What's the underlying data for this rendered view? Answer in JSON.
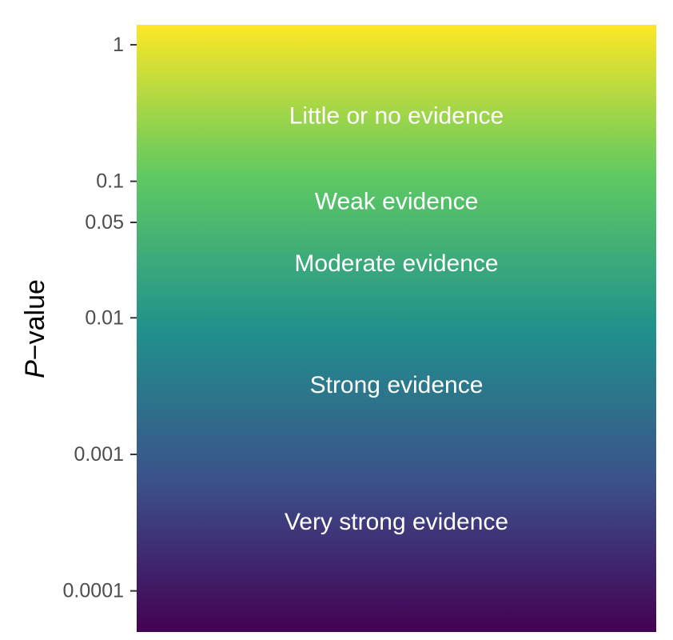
{
  "chart_data": {
    "type": "heatmap",
    "title": "",
    "xlabel": "",
    "ylabel": {
      "italic": "P",
      "rest": "−value"
    },
    "ylabel_text": "P−value",
    "y_scale": "log10",
    "ylim": [
      5e-05,
      1.4
    ],
    "y_ticks": [
      {
        "value": 1,
        "label": "1"
      },
      {
        "value": 0.1,
        "label": "0.1"
      },
      {
        "value": 0.05,
        "label": "0.05"
      },
      {
        "value": 0.01,
        "label": "0.01"
      },
      {
        "value": 0.001,
        "label": "0.001"
      },
      {
        "value": 0.0001,
        "label": "0.0001"
      }
    ],
    "bands": [
      {
        "label": "Little or no evidence",
        "at": 0.3
      },
      {
        "label": "Weak evidence",
        "at": 0.071
      },
      {
        "label": "Moderate evidence",
        "at": 0.025
      },
      {
        "label": "Strong evidence",
        "at": 0.0032
      },
      {
        "label": "Very strong evidence",
        "at": 0.00032
      }
    ],
    "colormap": "viridis",
    "colormap_stops": [
      "#440154",
      "#3b528b",
      "#21918c",
      "#5ec962",
      "#fde725"
    ],
    "grid": false,
    "legend": "none"
  }
}
